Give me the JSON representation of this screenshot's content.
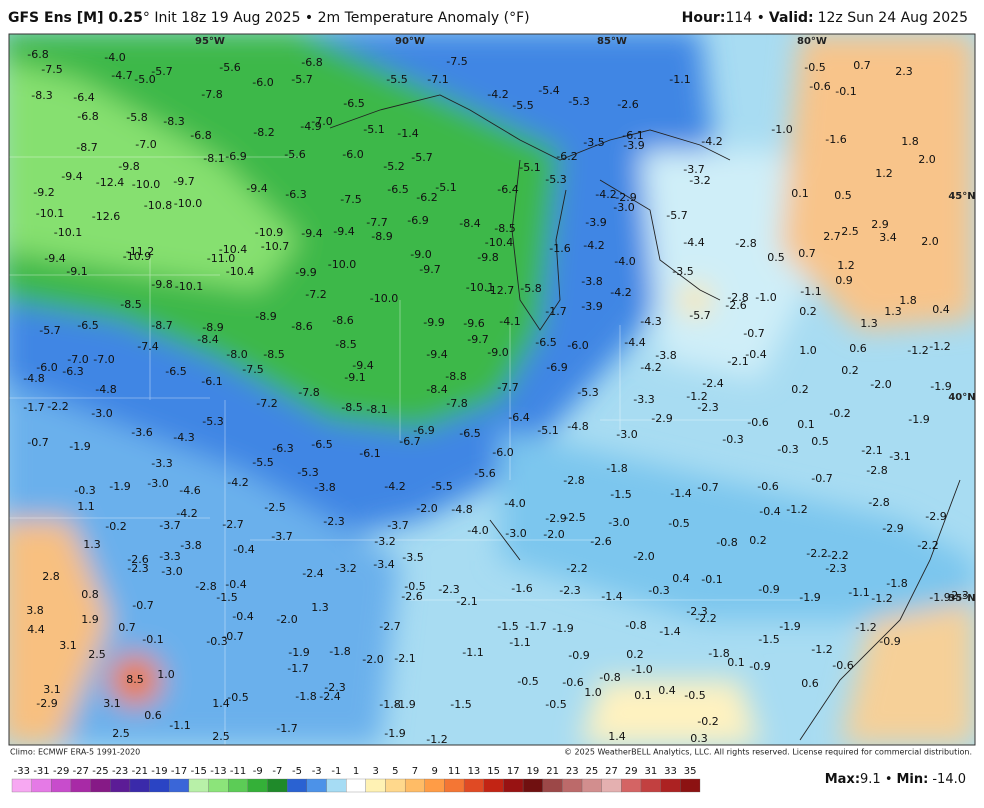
{
  "header": {
    "model": "GFS Ens [M] 0.25",
    "subtitle": "° Init 18z 19 Aug 2025 • 2m Temperature Anomaly (°F)",
    "hour_label": "Hour:",
    "hour": "114 •",
    "valid_label": "Valid:",
    "valid": "12z Sun 24 Aug 2025"
  },
  "map": {
    "graticule": [
      "95°W",
      "90°W",
      "85°W",
      "80°W",
      "45°N",
      "40°N",
      "35°N"
    ],
    "labels": [
      "-6.8",
      "-7.5",
      "-4.0",
      "-4.7",
      "-5.0",
      "-5.7",
      "-5.6",
      "-6.8",
      "-7.5",
      "-7.1",
      "-5.5",
      "-5.7",
      "-6.0",
      "-1.1",
      "-0.5",
      "0.7",
      "2.3",
      "-0.6",
      "-0.1",
      "-8.3",
      "-6.4",
      "-6.8",
      "-5.8",
      "-8.3",
      "-7.8",
      "-6.5",
      "-4.2",
      "-5.5",
      "-5.4",
      "-5.3",
      "-2.6",
      "-7.0",
      "-4.9",
      "-5.1",
      "-1.4",
      "-8.2",
      "-6.8",
      "-4.2",
      "-1.0",
      "-1.6",
      "1.8",
      "-8.7",
      "-7.0",
      "-6.9",
      "-8.1",
      "-5.6",
      "-6.0",
      "-5.7",
      "-5.2",
      "-3.5",
      "-6.1",
      "-3.9",
      "-6.2",
      "-5.1",
      "2.0",
      "-9.4",
      "-12.4",
      "-9.8",
      "-10.0",
      "-9.7",
      "-9.4",
      "-6.5",
      "-6.2",
      "-5.1",
      "-7.5",
      "-6.4",
      "-5.3",
      "-4.2",
      "-2.9",
      "-3.0",
      "-3.7",
      "-3.2",
      "1.2",
      "-9.2",
      "-10.8",
      "-10.0",
      "-6.3",
      "0.1",
      "0.5",
      "-10.1",
      "-12.6",
      "-7.7",
      "-6.9",
      "-8.4",
      "-8.5",
      "-3.9",
      "-5.7",
      "-10.1",
      "-10.9",
      "-9.4",
      "-9.4",
      "-8.9",
      "-10.4",
      "-4.2",
      "-4.4",
      "-2.8",
      "2.9",
      "2.7",
      "2.5",
      "3.4",
      "2.0",
      "-11.2",
      "-10.4",
      "-10.7",
      "-9.0",
      "-9.8",
      "-1.6",
      "-4.0",
      "0.5",
      "0.7",
      "-9.4",
      "-9.1",
      "-10.9",
      "-11.0",
      "-10.4",
      "-9.9",
      "-10.0",
      "-9.7",
      "1.2",
      "-3.5",
      "-3.8",
      "-10.1",
      "-12.7",
      "-5.8",
      "0.9",
      "-9.8",
      "-10.1",
      "-7.2",
      "-10.0",
      "-4.2",
      "-2.8",
      "-1.0",
      "-1.1",
      "-8.5",
      "-8.9",
      "-1.7",
      "-3.9",
      "1.8",
      "1.3",
      "0.4",
      "-5.7",
      "-6.5",
      "-8.7",
      "-8.9",
      "-8.6",
      "-8.6",
      "-9.9",
      "-9.6",
      "-4.1",
      "-4.3",
      "-5.7",
      "-2.6",
      "0.2",
      "1.3",
      "-8.4",
      "-7.4",
      "-9.7",
      "-8.5",
      "-6.5",
      "-6.0",
      "-4.4",
      "-0.7",
      "1.0",
      "0.6",
      "-1.2",
      "-1.2",
      "-7.0",
      "-7.0",
      "-8.0",
      "-8.5",
      "-9.4",
      "-9.0",
      "-3.8",
      "-0.4",
      "-6.0",
      "-6.3",
      "-6.5",
      "-7.5",
      "-9.4",
      "-9.1",
      "-8.8",
      "-6.9",
      "-4.2",
      "-2.1",
      "0.2",
      "-4.8",
      "-6.1",
      "-7.7",
      "-8.4",
      "-2.4",
      "-2.0",
      "-1.9",
      "-4.8",
      "-7.8",
      "-5.3",
      "-1.2",
      "0.2",
      "-1.7",
      "-2.2",
      "-7.2",
      "-8.5",
      "-8.1",
      "-7.8",
      "-3.3",
      "-2.3",
      "-3.0",
      "-6.4",
      "-2.9",
      "-0.2",
      "-1.9",
      "-5.3",
      "-5.1",
      "-4.8",
      "-0.6",
      "0.1",
      "-0.7",
      "-1.9",
      "-3.6",
      "-4.3",
      "-6.9",
      "-6.5",
      "-3.0",
      "-0.3",
      "0.5",
      "-2.1",
      "-6.7",
      "-6.3",
      "-6.5",
      "-6.1",
      "-6.0",
      "-0.3",
      "-3.1",
      "-5.5",
      "-1.8",
      "-2.8",
      "-3.3",
      "-5.3",
      "-5.6",
      "-2.8",
      "-0.7",
      "-0.3",
      "-1.9",
      "-3.0",
      "-4.6",
      "-4.2",
      "-3.8",
      "-4.2",
      "-5.5",
      "-1.4",
      "-0.7",
      "-0.6",
      "-1.5",
      "1.1",
      "-2.5",
      "-2.0",
      "-4.8",
      "-4.0",
      "-2.8",
      "-0.4",
      "-1.2",
      "-0.2",
      "-3.7",
      "-4.2",
      "-2.7",
      "-2.3",
      "-3.7",
      "-2.9",
      "-2.5",
      "-3.0",
      "-0.5",
      "-2.9",
      "-2.9",
      "-4.0",
      "-3.0",
      "-2.0",
      "-2.6",
      "-0.8",
      "0.2",
      "-2.2",
      "1.3",
      "-3.8",
      "-3.7",
      "-3.2",
      "-0.4",
      "-2.6",
      "-3.3",
      "-2.0",
      "-2.2",
      "-2.2",
      "-2.3",
      "-3.0",
      "-3.4",
      "-3.5",
      "-2.2",
      "-2.3",
      "2.8",
      "-2.4",
      "-3.2",
      "0.4",
      "-0.1",
      "-1.8",
      "-2.8",
      "-0.4",
      "-0.5",
      "-1.6",
      "-2.3",
      "-0.3",
      "-0.9",
      "-1.1",
      "-1.2",
      "0.8",
      "-2.6",
      "-2.3",
      "-1.4",
      "-1.9",
      "-1.9",
      "-2.3",
      "3.8",
      "-0.7",
      "-1.5",
      "1.3",
      "-2.1",
      "-2.3",
      "1.9",
      "-0.4",
      "-2.0",
      "-2.2",
      "4.4",
      "0.7",
      "-2.7",
      "-1.5",
      "-1.7",
      "-1.9",
      "-0.8",
      "-1.4",
      "-1.9",
      "-1.2",
      "3.1",
      "-0.1",
      "-0.3",
      "-0.7",
      "-1.1",
      "-1.5",
      "-0.9",
      "2.5",
      "-1.9",
      "-1.8",
      "-2.0",
      "-2.1",
      "-1.1",
      "-0.9",
      "0.2",
      "-1.8",
      "-1.2",
      "-1.7",
      "0.1",
      "-0.9",
      "-1.0",
      "-0.6",
      "8.5",
      "1.0",
      "3.1",
      "-0.5",
      "-0.6",
      "-0.8",
      "-2.3",
      "-1.8",
      "-2.4",
      "1.0",
      "0.6",
      "0.1",
      "0.4",
      "-0.5",
      "1.4",
      "-0.5",
      "3.1",
      "-2.9",
      "-1.8",
      "-1.9",
      "-1.5",
      "-0.5",
      "0.6",
      "-1.1",
      "-1.7",
      "-0.2",
      "2.5",
      "2.5",
      "-1.9",
      "-1.2",
      "1.4",
      "0.3"
    ]
  },
  "colorbar": {
    "ticks": [
      "-33",
      "-31",
      "-29",
      "-27",
      "-25",
      "-23",
      "-21",
      "-19",
      "-17",
      "-15",
      "-13",
      "-11",
      "-9",
      "-7",
      "-5",
      "-3",
      "-1",
      "1",
      "3",
      "5",
      "7",
      "9",
      "11",
      "13",
      "15",
      "17",
      "19",
      "21",
      "23",
      "25",
      "27",
      "29",
      "31",
      "33",
      "35"
    ],
    "colors": [
      "#f7a8f2",
      "#e57ae6",
      "#c84ccc",
      "#a82aa6",
      "#861a86",
      "#5c1c96",
      "#3a2aaa",
      "#2a44c4",
      "#3a66d8",
      "#b8f0a8",
      "#8ce47a",
      "#5ccc56",
      "#34b038",
      "#1f8a2a",
      "#2a62d2",
      "#4c92e8",
      "#a6dcf4",
      "#ffffff",
      "#fff2b4",
      "#ffd88c",
      "#ffbc66",
      "#ff9c46",
      "#f47634",
      "#e04a24",
      "#c22414",
      "#981212",
      "#701010",
      "#9c4848",
      "#bc6a6a",
      "#d28e8e",
      "#e4b0b0",
      "#d46464",
      "#c24040",
      "#ac2222",
      "#8c1212"
    ]
  },
  "footer": {
    "climo": "Climo: ECMWF ERA-5 1991-2020",
    "copyright": "© 2025 WeatherBELL Analytics, LLC. All rights reserved. License required for commercial distribution.",
    "max_label": "Max:",
    "max": "9.1 •",
    "min_label": "Min:",
    "min": "-14.0"
  }
}
